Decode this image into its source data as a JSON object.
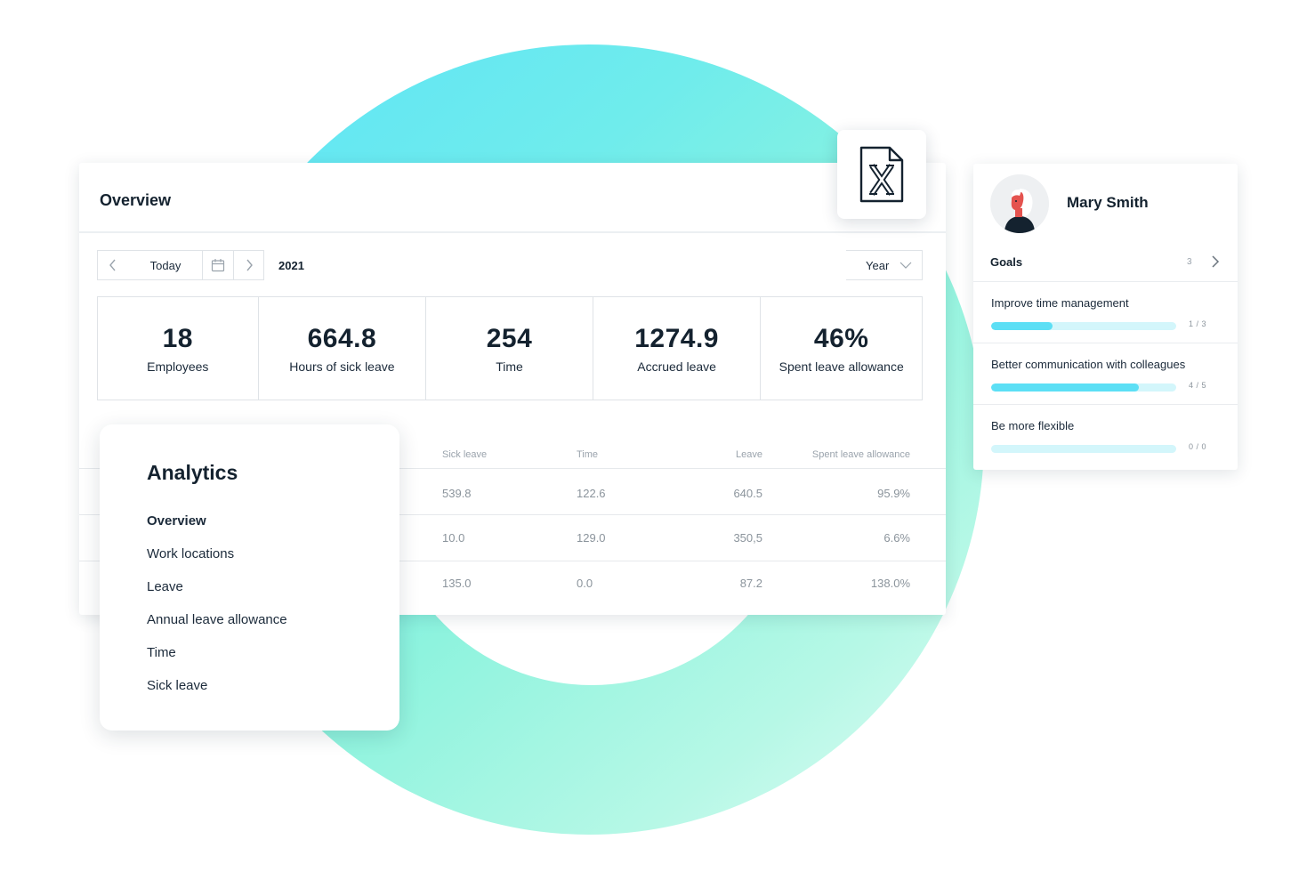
{
  "overview": {
    "title": "Overview",
    "today_label": "Today",
    "year": "2021",
    "period": "Year",
    "stats": [
      {
        "value": "18",
        "label": "Employees"
      },
      {
        "value": "664.8",
        "label": "Hours of sick leave"
      },
      {
        "value": "254",
        "label": "Time"
      },
      {
        "value": "1274.9",
        "label": "Accrued leave"
      },
      {
        "value": "46%",
        "label": "Spent leave allowance"
      }
    ],
    "table": {
      "headers": [
        "Sick leave",
        "Time",
        "Leave",
        "Spent leave allowance"
      ],
      "rows": [
        [
          "539.8",
          "122.6",
          "640.5",
          "95.9%"
        ],
        [
          "10.0",
          "129.0",
          "350,5",
          "6.6%"
        ],
        [
          "135.0",
          "0.0",
          "87.2",
          "138.0%"
        ]
      ]
    }
  },
  "export": {
    "icon": "excel-file-icon"
  },
  "analytics": {
    "title": "Analytics",
    "items": [
      "Overview",
      "Work locations",
      "Leave",
      "Annual leave allowance",
      "Time",
      "Sick leave"
    ],
    "active_item": "Overview"
  },
  "profile": {
    "name": "Mary Smith",
    "goals_label": "Goals",
    "goals_count": "3",
    "goals": [
      {
        "title": "Improve time management",
        "ratio": "1 / 3",
        "progress": 0.333
      },
      {
        "title": "Better communication with colleagues",
        "ratio": "4 / 5",
        "progress": 0.8
      },
      {
        "title": "Be more flexible",
        "ratio": "0 / 0",
        "progress": 0
      }
    ]
  },
  "colors": {
    "accent": "#5cdff5",
    "track": "#d3f6fb",
    "text": "#14222f",
    "muted": "#8b949c"
  }
}
